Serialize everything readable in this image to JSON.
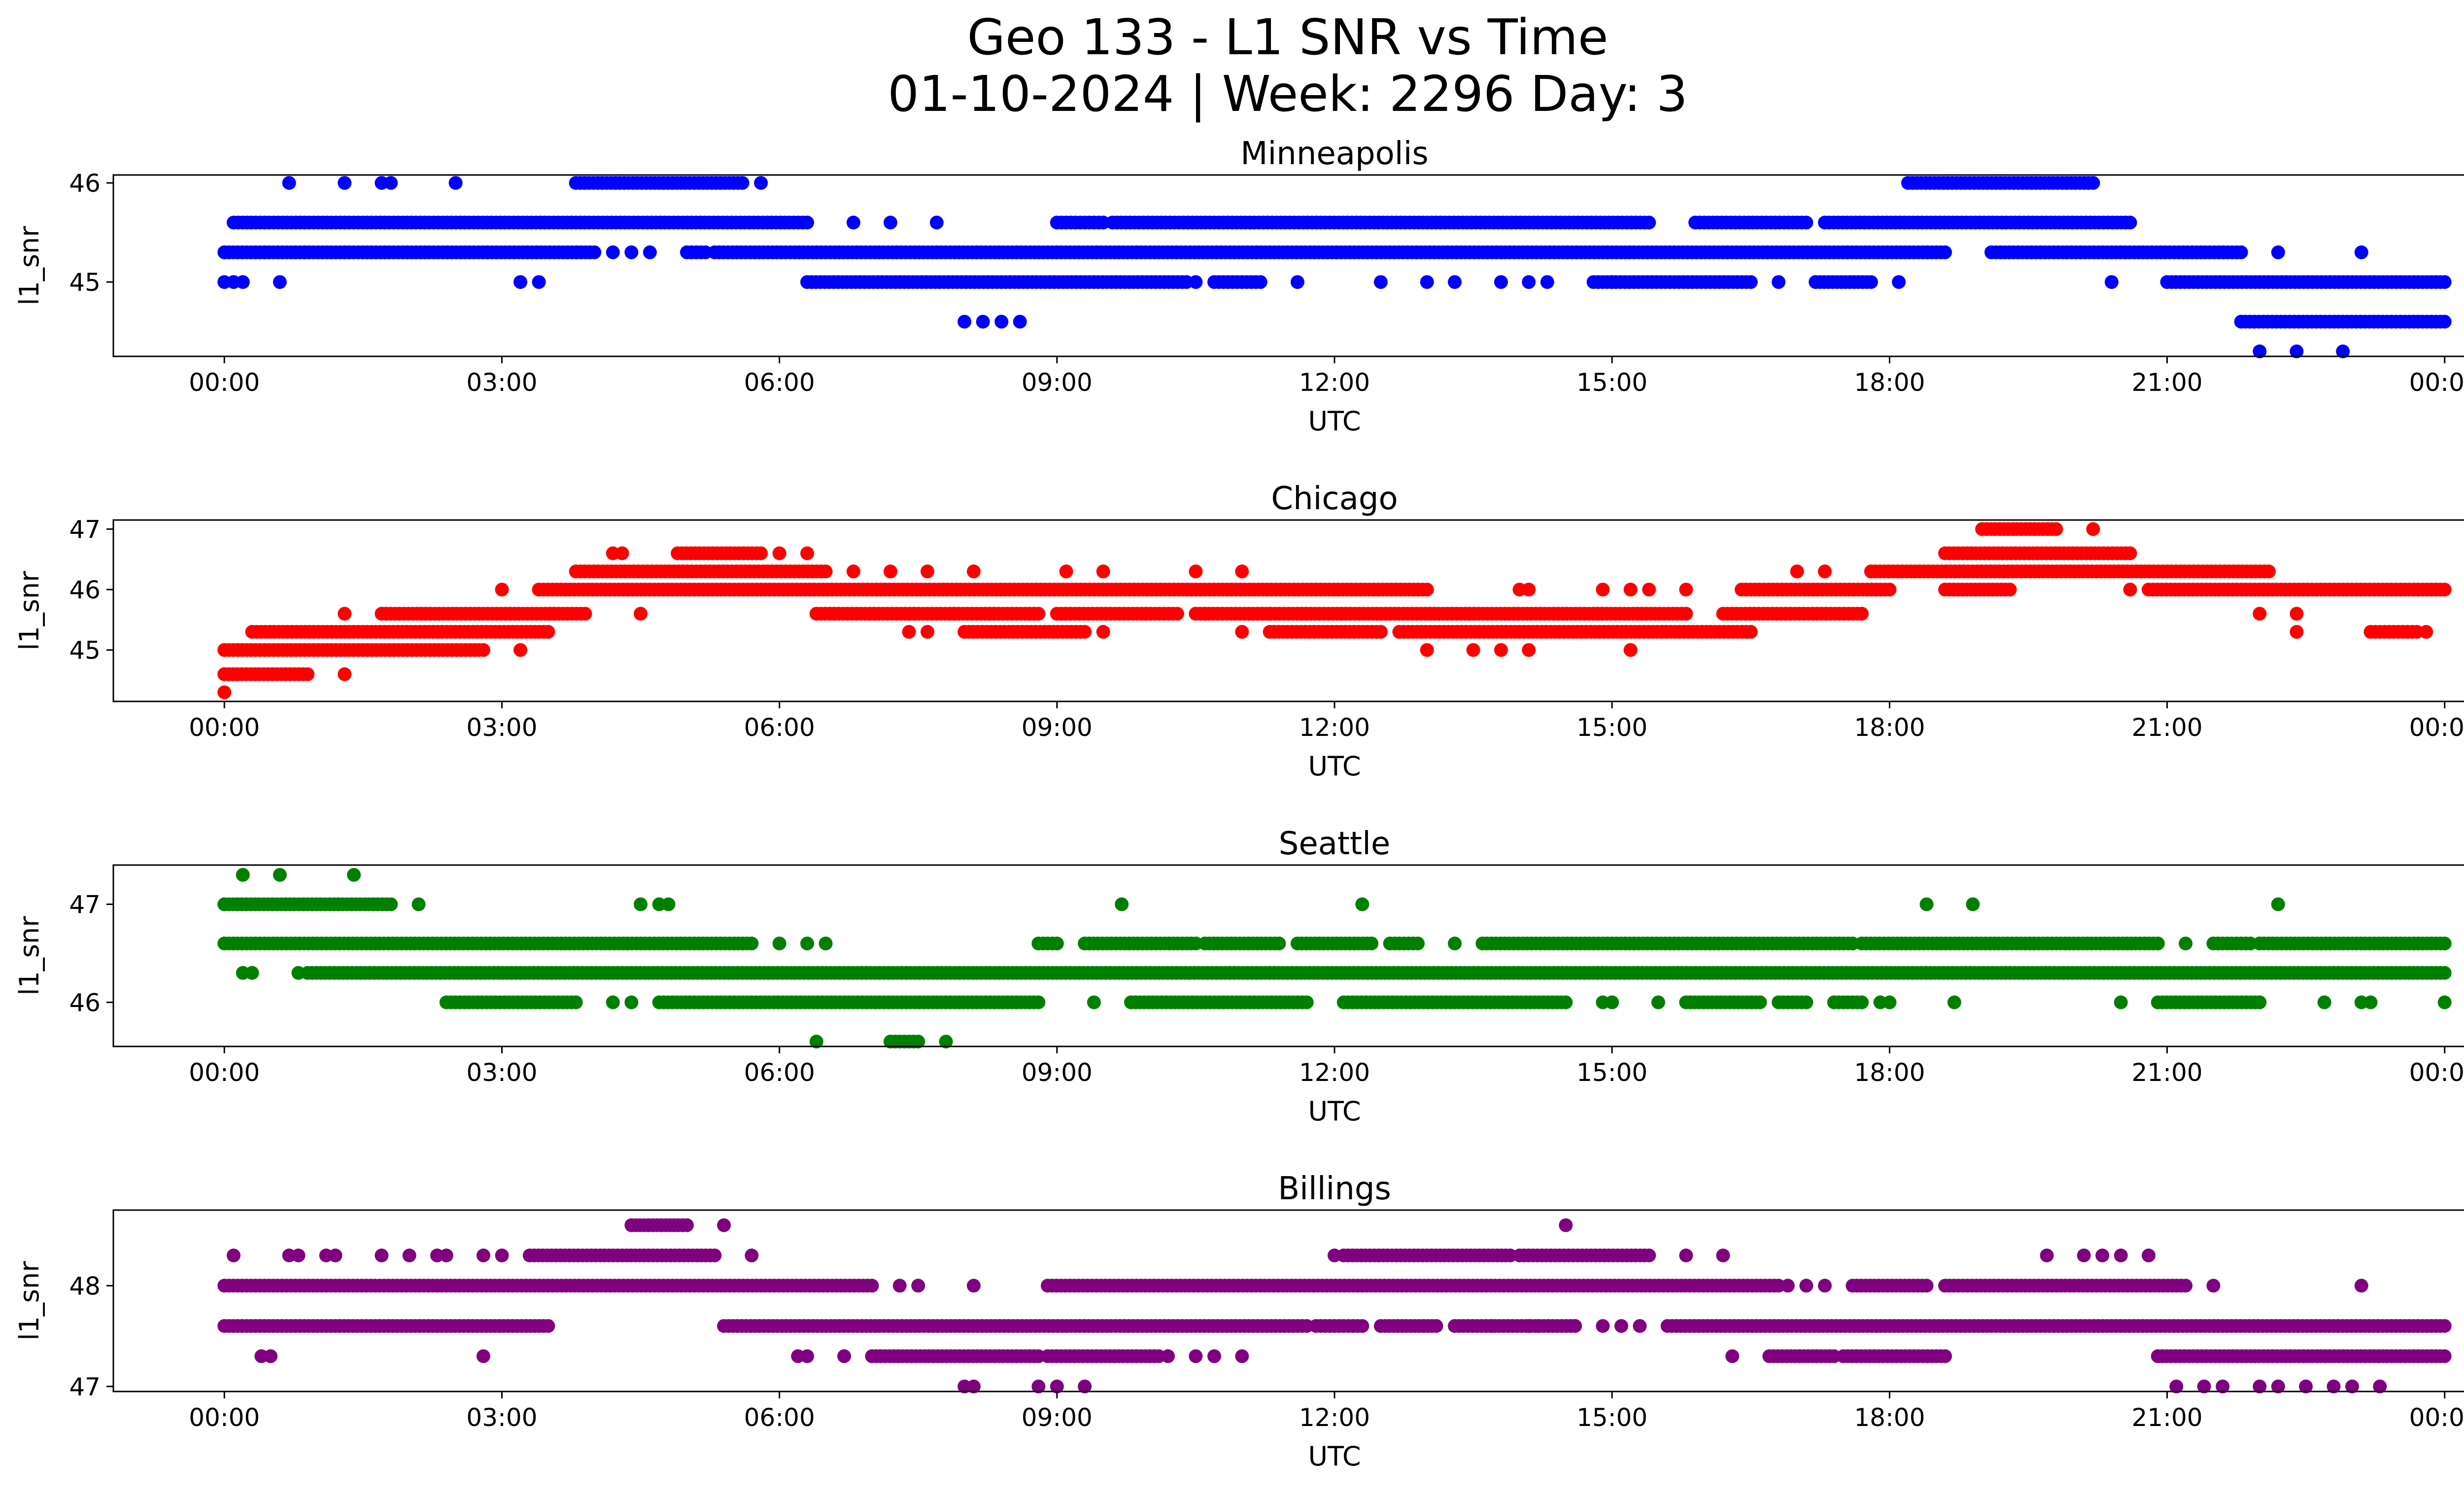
{
  "figure": {
    "title_line1": "Geo 133 - L1 SNR vs Time",
    "title_line2": "01-10-2024 | Week: 2296 Day: 3"
  },
  "chart_data": [
    {
      "type": "scatter",
      "title": "Minneapolis",
      "xlabel": "UTC",
      "ylabel": "l1_snr",
      "color": "#0000ff",
      "x_ticks": [
        "00:00",
        "03:00",
        "06:00",
        "09:00",
        "12:00",
        "15:00",
        "18:00",
        "21:00",
        "00:00"
      ],
      "xlim_hours": [
        -1.2,
        25.2
      ],
      "y_ticks": [
        45,
        46
      ],
      "ylim": [
        44.25,
        46.08
      ],
      "segments": [
        {
          "y": 45.6,
          "ranges": [
            [
              0.1,
              6.3
            ],
            [
              9.0,
              9.5
            ],
            [
              9.6,
              15.4
            ],
            [
              15.9,
              17.1
            ],
            [
              17.3,
              20.6
            ]
          ],
          "points": [
            6.8,
            7.2,
            7.7
          ]
        },
        {
          "y": 45.3,
          "ranges": [
            [
              0.0,
              4.0
            ],
            [
              5.0,
              5.2
            ],
            [
              5.3,
              18.6
            ],
            [
              19.1,
              21.8
            ]
          ],
          "points": [
            4.2,
            4.4,
            4.6,
            22.2,
            23.1
          ]
        },
        {
          "y": 45.0,
          "ranges": [
            [
              6.3,
              10.4
            ],
            [
              10.7,
              11.2
            ],
            [
              14.8,
              16.5
            ],
            [
              17.2,
              17.8
            ],
            [
              21.0,
              24.0
            ]
          ],
          "points": [
            0.0,
            0.1,
            0.2,
            0.6,
            3.2,
            3.4,
            10.5,
            11.6,
            12.5,
            13.0,
            13.3,
            13.8,
            14.1,
            14.3,
            15.0,
            16.8,
            18.1,
            20.4
          ]
        },
        {
          "y": 44.6,
          "ranges": [
            [
              21.8,
              24.0
            ]
          ],
          "points": [
            8.0,
            8.2,
            8.4,
            8.6
          ]
        },
        {
          "y": 46.0,
          "ranges": [
            [
              3.8,
              5.6
            ],
            [
              18.2,
              20.2
            ]
          ],
          "points": [
            0.7,
            1.3,
            1.7,
            1.8,
            2.5,
            5.8
          ]
        },
        {
          "y": 44.3,
          "ranges": [],
          "points": [
            22.0,
            22.4,
            22.9
          ]
        }
      ]
    },
    {
      "type": "scatter",
      "title": "Chicago",
      "xlabel": "UTC",
      "ylabel": "l1_snr",
      "color": "#ff0000",
      "x_ticks": [
        "00:00",
        "03:00",
        "06:00",
        "09:00",
        "12:00",
        "15:00",
        "18:00",
        "21:00",
        "00:00"
      ],
      "xlim_hours": [
        -1.2,
        25.2
      ],
      "y_ticks": [
        45,
        46,
        47
      ],
      "ylim": [
        44.15,
        47.15
      ],
      "segments": [
        {
          "y": 45.0,
          "ranges": [
            [
              0.0,
              2.8
            ]
          ],
          "points": [
            3.2,
            13.0,
            13.5,
            13.8,
            14.1,
            15.2
          ]
        },
        {
          "y": 44.6,
          "ranges": [
            [
              0.0,
              0.9
            ]
          ],
          "points": [
            1.3
          ]
        },
        {
          "y": 44.3,
          "ranges": [],
          "points": [
            0.0
          ]
        },
        {
          "y": 45.3,
          "ranges": [
            [
              0.3,
              3.5
            ],
            [
              8.0,
              9.3
            ],
            [
              11.3,
              12.5
            ],
            [
              12.7,
              16.5
            ]
          ],
          "points": [
            7.4,
            7.6,
            9.5,
            11.0
          ]
        },
        {
          "y": 45.6,
          "ranges": [
            [
              1.7,
              3.9
            ],
            [
              6.4,
              8.8
            ],
            [
              9.0,
              10.3
            ],
            [
              10.5,
              15.8
            ],
            [
              16.2,
              17.7
            ]
          ],
          "points": [
            1.3,
            4.5,
            10.5,
            10.6,
            11.3,
            22.0,
            22.4
          ]
        },
        {
          "y": 46.0,
          "ranges": [
            [
              3.4,
              13.0
            ],
            [
              16.4,
              18.0
            ],
            [
              18.6,
              19.3
            ],
            [
              20.8,
              24.0
            ]
          ],
          "points": [
            3.0,
            14.0,
            14.1,
            14.9,
            15.2,
            15.4,
            15.8,
            20.6
          ]
        },
        {
          "y": 46.3,
          "ranges": [
            [
              3.8,
              6.5
            ],
            [
              17.8,
              22.1
            ]
          ],
          "points": [
            6.8,
            7.2,
            7.6,
            8.1,
            9.1,
            9.5,
            10.5,
            11.0,
            17.0,
            17.3
          ]
        },
        {
          "y": 46.6,
          "ranges": [
            [
              4.9,
              5.8
            ],
            [
              18.6,
              20.6
            ]
          ],
          "points": [
            4.2,
            4.3,
            6.0,
            6.3
          ]
        },
        {
          "y": 47.0,
          "ranges": [
            [
              19.0,
              19.8
            ]
          ],
          "points": [
            20.2
          ]
        },
        {
          "y": 45.3,
          "ranges": [
            [
              23.2,
              23.7
            ]
          ],
          "points": [
            22.4,
            23.8
          ]
        }
      ]
    },
    {
      "type": "scatter",
      "title": "Seattle",
      "xlabel": "UTC",
      "ylabel": "l1_snr",
      "color": "#008000",
      "x_ticks": [
        "00:00",
        "03:00",
        "06:00",
        "09:00",
        "12:00",
        "15:00",
        "18:00",
        "21:00",
        "00:00"
      ],
      "xlim_hours": [
        -1.2,
        25.2
      ],
      "y_ticks": [
        46,
        47
      ],
      "ylim": [
        45.55,
        47.4
      ],
      "segments": [
        {
          "y": 47.0,
          "ranges": [
            [
              0.0,
              1.8
            ]
          ],
          "points": [
            2.1,
            4.5,
            4.7,
            4.8,
            9.7,
            12.3,
            18.4,
            18.9,
            22.2
          ]
        },
        {
          "y": 47.3,
          "ranges": [],
          "points": [
            0.2,
            0.6,
            1.4
          ]
        },
        {
          "y": 46.6,
          "ranges": [
            [
              0.0,
              5.7
            ],
            [
              8.8,
              9.0
            ],
            [
              9.3,
              10.5
            ],
            [
              10.6,
              11.4
            ],
            [
              11.6,
              12.4
            ],
            [
              12.6,
              12.9
            ],
            [
              13.6,
              17.6
            ],
            [
              17.7,
              20.9
            ],
            [
              21.5,
              21.9
            ],
            [
              22.0,
              24.0
            ]
          ],
          "points": [
            6.0,
            6.3,
            6.5,
            13.3,
            21.2
          ]
        },
        {
          "y": 46.3,
          "ranges": [
            [
              0.9,
              24.0
            ]
          ],
          "points": [
            0.2,
            0.3,
            0.8
          ]
        },
        {
          "y": 46.0,
          "ranges": [
            [
              2.4,
              3.8
            ],
            [
              4.7,
              8.8
            ],
            [
              9.8,
              11.7
            ],
            [
              12.1,
              14.5
            ],
            [
              15.8,
              16.6
            ],
            [
              16.8,
              17.1
            ],
            [
              17.4,
              17.7
            ],
            [
              20.9,
              22.0
            ]
          ],
          "points": [
            4.2,
            4.4,
            9.4,
            14.9,
            15.0,
            15.5,
            17.9,
            18.0,
            18.7,
            20.5,
            22.7,
            23.1,
            23.2,
            24.0
          ]
        },
        {
          "y": 45.6,
          "ranges": [
            [
              7.2,
              7.5
            ]
          ],
          "points": [
            6.4,
            7.8
          ]
        }
      ]
    },
    {
      "type": "scatter",
      "title": "Billings",
      "xlabel": "UTC",
      "ylabel": "l1_snr",
      "color": "#800080",
      "x_ticks": [
        "00:00",
        "03:00",
        "06:00",
        "09:00",
        "12:00",
        "15:00",
        "18:00",
        "21:00",
        "00:00"
      ],
      "xlim_hours": [
        -1.2,
        25.2
      ],
      "y_ticks": [
        47,
        48
      ],
      "ylim": [
        46.95,
        48.75
      ],
      "segments": [
        {
          "y": 48.0,
          "ranges": [
            [
              0.0,
              7.0
            ],
            [
              8.9,
              16.8
            ],
            [
              17.6,
              18.4
            ],
            [
              18.6,
              21.2
            ]
          ],
          "points": [
            7.3,
            7.5,
            8.1,
            16.9,
            17.1,
            17.3,
            21.5,
            23.1
          ]
        },
        {
          "y": 47.6,
          "ranges": [
            [
              0.0,
              3.5
            ],
            [
              5.4,
              11.7
            ],
            [
              11.8,
              12.3
            ],
            [
              12.5,
              13.1
            ],
            [
              13.3,
              14.6
            ],
            [
              15.6,
              24.0
            ]
          ],
          "points": [
            13.7,
            14.1,
            14.2,
            14.6,
            14.9,
            15.1,
            15.3
          ]
        },
        {
          "y": 47.3,
          "ranges": [
            [
              7.0,
              8.8
            ],
            [
              8.9,
              10.1
            ],
            [
              16.7,
              17.4
            ],
            [
              17.5,
              18.6
            ],
            [
              20.9,
              24.0
            ]
          ],
          "points": [
            0.4,
            0.5,
            2.8,
            6.2,
            6.3,
            6.7,
            10.2,
            10.5,
            10.7,
            11.0,
            16.3
          ]
        },
        {
          "y": 48.3,
          "ranges": [
            [
              3.3,
              5.3
            ],
            [
              12.1,
              13.9
            ],
            [
              14.0,
              15.4
            ]
          ],
          "points": [
            0.1,
            0.7,
            0.8,
            1.1,
            1.2,
            1.7,
            2.0,
            2.3,
            2.4,
            2.8,
            3.0,
            5.7,
            12.0,
            15.8,
            16.2,
            19.7,
            20.1,
            20.3,
            20.5,
            20.8
          ]
        },
        {
          "y": 48.6,
          "ranges": [
            [
              4.4,
              5.0
            ]
          ],
          "points": [
            5.4,
            14.5
          ]
        },
        {
          "y": 47.0,
          "ranges": [],
          "points": [
            8.0,
            8.1,
            8.8,
            9.0,
            9.3,
            21.1,
            21.4,
            21.6,
            22.0,
            22.2,
            22.5,
            22.8,
            23.0,
            23.3
          ]
        }
      ]
    }
  ]
}
